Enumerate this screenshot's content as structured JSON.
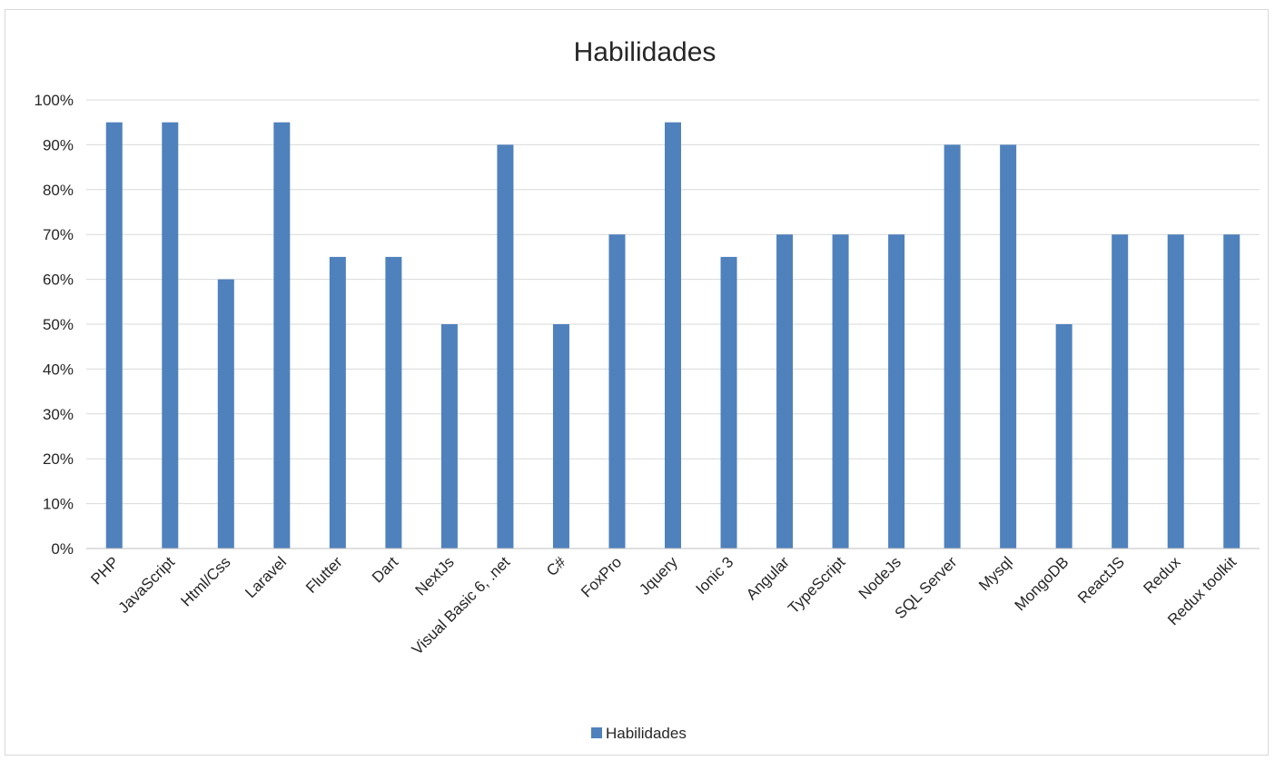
{
  "chart_data": {
    "type": "bar",
    "title": "Habilidades",
    "xlabel": "",
    "ylabel": "",
    "ylim": [
      0,
      100
    ],
    "y_tick_step": 10,
    "y_tick_format": "percent",
    "grid": true,
    "legend_position": "bottom",
    "categories": [
      "PHP",
      "JavaScript",
      "Html/Css",
      "Laravel",
      "Flutter",
      "Dart",
      "NextJs",
      "Visual Basic 6, .net",
      "C#",
      "FoxPro",
      "Jquery",
      "Ionic 3",
      "Angular",
      "TypeScript",
      "NodeJs",
      "SQL Server",
      "Mysql",
      "MongoDB",
      "ReactJS",
      "Redux",
      "Redux toolkit"
    ],
    "series": [
      {
        "name": "Habilidades",
        "color": "#4f81bd",
        "values": [
          95,
          95,
          60,
          95,
          65,
          65,
          50,
          90,
          50,
          70,
          95,
          65,
          70,
          70,
          70,
          90,
          90,
          50,
          70,
          70,
          70
        ]
      }
    ]
  }
}
